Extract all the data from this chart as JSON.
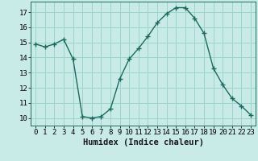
{
  "x": [
    0,
    1,
    2,
    3,
    4,
    5,
    6,
    7,
    8,
    9,
    10,
    11,
    12,
    13,
    14,
    15,
    16,
    17,
    18,
    19,
    20,
    21,
    22,
    23
  ],
  "y": [
    14.9,
    14.7,
    14.9,
    15.2,
    13.9,
    10.1,
    10.0,
    10.1,
    10.6,
    12.6,
    13.9,
    14.6,
    15.4,
    16.3,
    16.9,
    17.3,
    17.3,
    16.6,
    15.6,
    13.3,
    12.2,
    11.3,
    10.8,
    10.2
  ],
  "line_color": "#1a6b5e",
  "marker": "+",
  "marker_size": 4,
  "bg_color": "#c8ebe8",
  "grid_color": "#9dd4cf",
  "xlabel": "Humidex (Indice chaleur)",
  "xlim": [
    -0.5,
    23.5
  ],
  "ylim": [
    9.5,
    17.7
  ],
  "yticks": [
    10,
    11,
    12,
    13,
    14,
    15,
    16,
    17
  ],
  "xticks": [
    0,
    1,
    2,
    3,
    4,
    5,
    6,
    7,
    8,
    9,
    10,
    11,
    12,
    13,
    14,
    15,
    16,
    17,
    18,
    19,
    20,
    21,
    22,
    23
  ],
  "tick_fontsize": 6.5,
  "xlabel_fontsize": 7.5,
  "line_width": 1.0
}
